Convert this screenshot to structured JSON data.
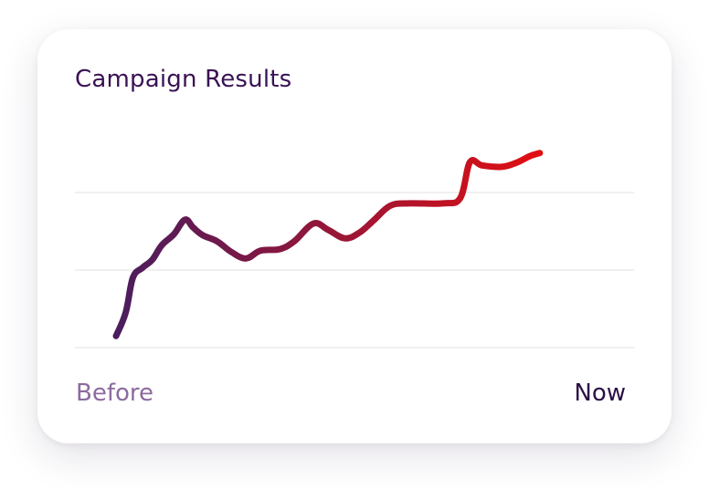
{
  "card": {
    "title": "Campaign Results",
    "start_label": "Before",
    "end_label": "Now"
  },
  "colors": {
    "title": "#3a1254",
    "start_label": "#8c6a9e",
    "end_label": "#2e0f45",
    "line_start": "#4a1d5e",
    "line_end": "#e10f12",
    "gridline": "#e6e6e6"
  },
  "chart_data": {
    "type": "line",
    "title": "Campaign Results",
    "xlabel": "",
    "ylabel": "",
    "x_tick_labels": [
      "Before",
      "Now"
    ],
    "grid": true,
    "gridline_values": [
      0,
      1,
      2
    ],
    "ylim": [
      0,
      2.6
    ],
    "series": [
      {
        "values": [
          {
            "x": 0.0,
            "y": 0.15
          },
          {
            "x": 0.02,
            "y": 0.45
          },
          {
            "x": 0.035,
            "y": 0.9
          },
          {
            "x": 0.055,
            "y": 1.03
          },
          {
            "x": 0.075,
            "y": 1.13
          },
          {
            "x": 0.095,
            "y": 1.32
          },
          {
            "x": 0.12,
            "y": 1.46
          },
          {
            "x": 0.143,
            "y": 1.65
          },
          {
            "x": 0.16,
            "y": 1.55
          },
          {
            "x": 0.18,
            "y": 1.45
          },
          {
            "x": 0.21,
            "y": 1.37
          },
          {
            "x": 0.24,
            "y": 1.23
          },
          {
            "x": 0.27,
            "y": 1.15
          },
          {
            "x": 0.3,
            "y": 1.25
          },
          {
            "x": 0.34,
            "y": 1.27
          },
          {
            "x": 0.37,
            "y": 1.37
          },
          {
            "x": 0.41,
            "y": 1.6
          },
          {
            "x": 0.44,
            "y": 1.52
          },
          {
            "x": 0.475,
            "y": 1.41
          },
          {
            "x": 0.505,
            "y": 1.48
          },
          {
            "x": 0.535,
            "y": 1.64
          },
          {
            "x": 0.57,
            "y": 1.83
          },
          {
            "x": 0.61,
            "y": 1.86
          },
          {
            "x": 0.68,
            "y": 1.86
          },
          {
            "x": 0.715,
            "y": 1.93
          },
          {
            "x": 0.735,
            "y": 2.39
          },
          {
            "x": 0.76,
            "y": 2.35
          },
          {
            "x": 0.8,
            "y": 2.33
          },
          {
            "x": 0.83,
            "y": 2.38
          },
          {
            "x": 0.86,
            "y": 2.47
          },
          {
            "x": 0.88,
            "y": 2.51
          }
        ]
      }
    ]
  }
}
